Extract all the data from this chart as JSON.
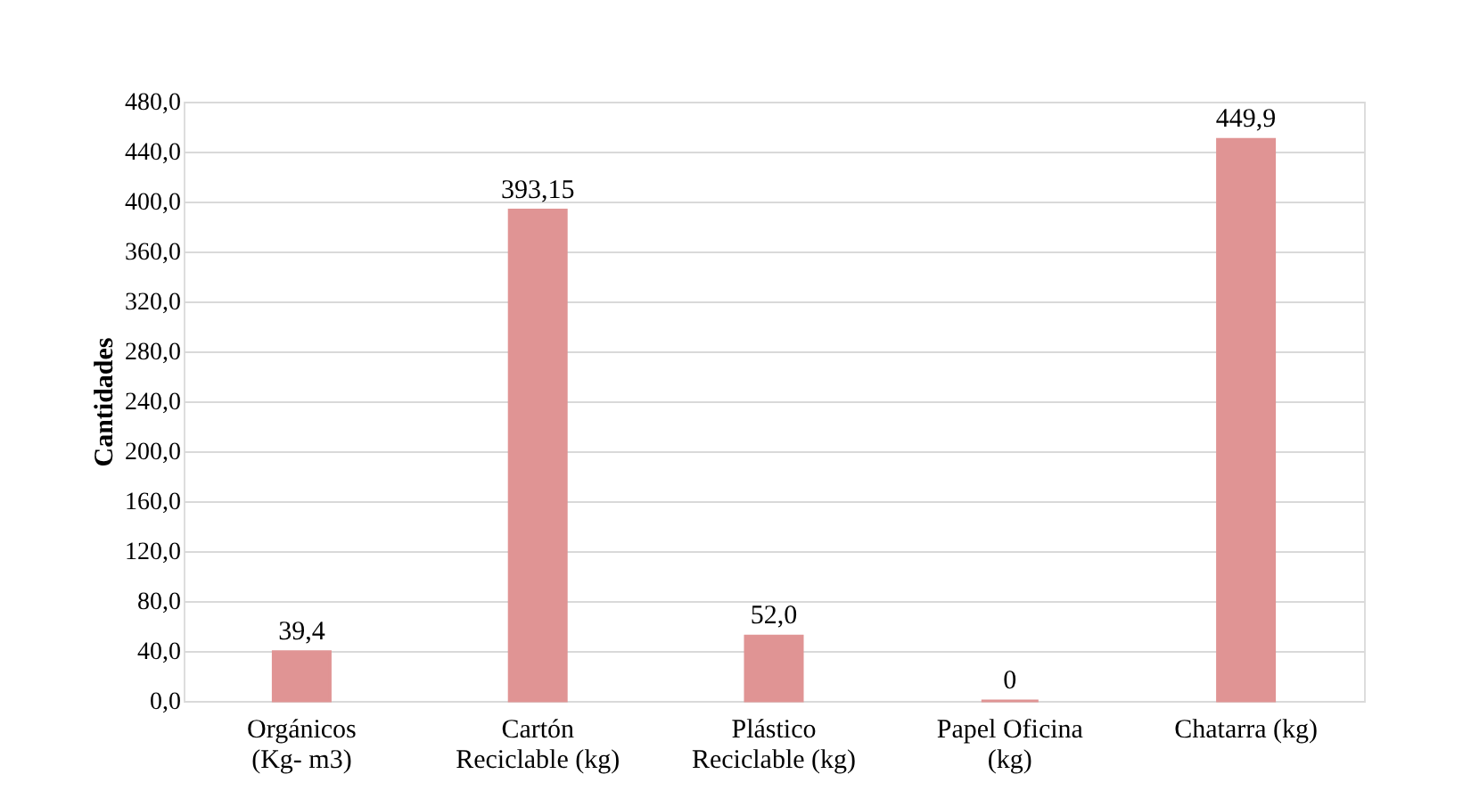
{
  "chart_data": {
    "type": "bar",
    "categories": [
      "Orgánicos\n(Kg- m3)",
      "Cartón\nReciclable (kg)",
      "Plástico\nReciclable (kg)",
      "Papel Oficina\n(kg)",
      "Chatarra (kg)"
    ],
    "values": [
      39.4,
      393.15,
      52.0,
      0,
      449.9
    ],
    "value_labels": [
      "39,4",
      "393,15",
      "52,0",
      "0",
      "449,9"
    ],
    "color": "#e09494",
    "ylabel": "Cantidades",
    "ylim": [
      0,
      480
    ],
    "yticks": [
      {
        "value": 0,
        "label": "0,0"
      },
      {
        "value": 40,
        "label": "40,0"
      },
      {
        "value": 80,
        "label": "80,0"
      },
      {
        "value": 120,
        "label": "120,0"
      },
      {
        "value": 160,
        "label": "160,0"
      },
      {
        "value": 200,
        "label": "200,0"
      },
      {
        "value": 240,
        "label": "240,0"
      },
      {
        "value": 280,
        "label": "280,0"
      },
      {
        "value": 320,
        "label": "320,0"
      },
      {
        "value": 360,
        "label": "360,0"
      },
      {
        "value": 400,
        "label": "400,0"
      },
      {
        "value": 440,
        "label": "440,0"
      },
      {
        "value": 480,
        "label": "480,0"
      }
    ],
    "grid": "y"
  }
}
